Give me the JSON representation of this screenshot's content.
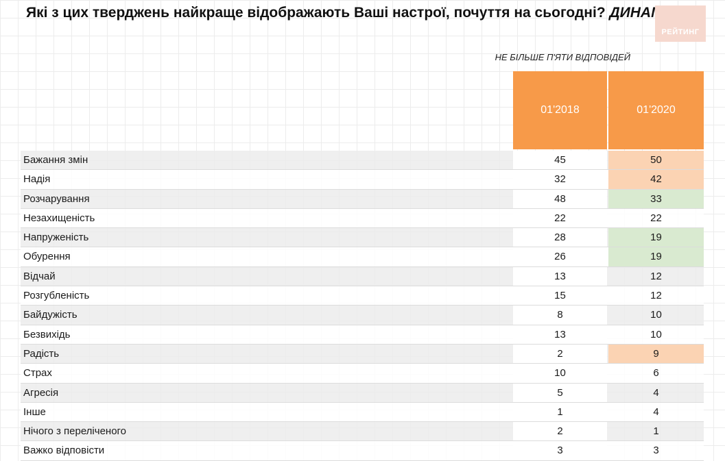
{
  "title": "Які з цих тверджень найкраще відображають Ваші настрої, почуття на сьогодні?",
  "title_highlight": "ДИНАМІКА",
  "logo_text": "РЕЙТИНГ",
  "note": "НЕ БІЛЬШЕ П'ЯТИ ВІДПОВІДЕЙ",
  "colors": {
    "header": "#f79a49",
    "increase": "#fbd3b3",
    "decrease": "#d9ead0"
  },
  "chart_data": {
    "type": "table",
    "columns": [
      "01'2018",
      "01'2020"
    ],
    "rows": [
      {
        "label": "Бажання змін",
        "v2018": "45",
        "v2020": "50",
        "highlight": "up"
      },
      {
        "label": "Надія",
        "v2018": "32",
        "v2020": "42",
        "highlight": "up"
      },
      {
        "label": "Розчарування",
        "v2018": "48",
        "v2020": "33",
        "highlight": "down"
      },
      {
        "label": "Незахищеність",
        "v2018": "22",
        "v2020": "22",
        "highlight": ""
      },
      {
        "label": "Напруженість",
        "v2018": "28",
        "v2020": "19",
        "highlight": "down"
      },
      {
        "label": "Обурення",
        "v2018": "26",
        "v2020": "19",
        "highlight": "down"
      },
      {
        "label": "Відчай",
        "v2018": "13",
        "v2020": "12",
        "highlight": ""
      },
      {
        "label": "Розгубленість",
        "v2018": "15",
        "v2020": "12",
        "highlight": ""
      },
      {
        "label": "Байдужість",
        "v2018": "8",
        "v2020": "10",
        "highlight": ""
      },
      {
        "label": "Безвихідь",
        "v2018": "13",
        "v2020": "10",
        "highlight": ""
      },
      {
        "label": "Радість",
        "v2018": "2",
        "v2020": "9",
        "highlight": "up"
      },
      {
        "label": "Страх",
        "v2018": "10",
        "v2020": "6",
        "highlight": ""
      },
      {
        "label": "Агресія",
        "v2018": "5",
        "v2020": "4",
        "highlight": ""
      },
      {
        "label": "Інше",
        "v2018": "1",
        "v2020": "4",
        "highlight": ""
      },
      {
        "label": "Нічого з переліченого",
        "v2018": "2",
        "v2020": "1",
        "highlight": ""
      },
      {
        "label": "Важко відповісти",
        "v2018": "3",
        "v2020": "3",
        "highlight": ""
      }
    ]
  }
}
